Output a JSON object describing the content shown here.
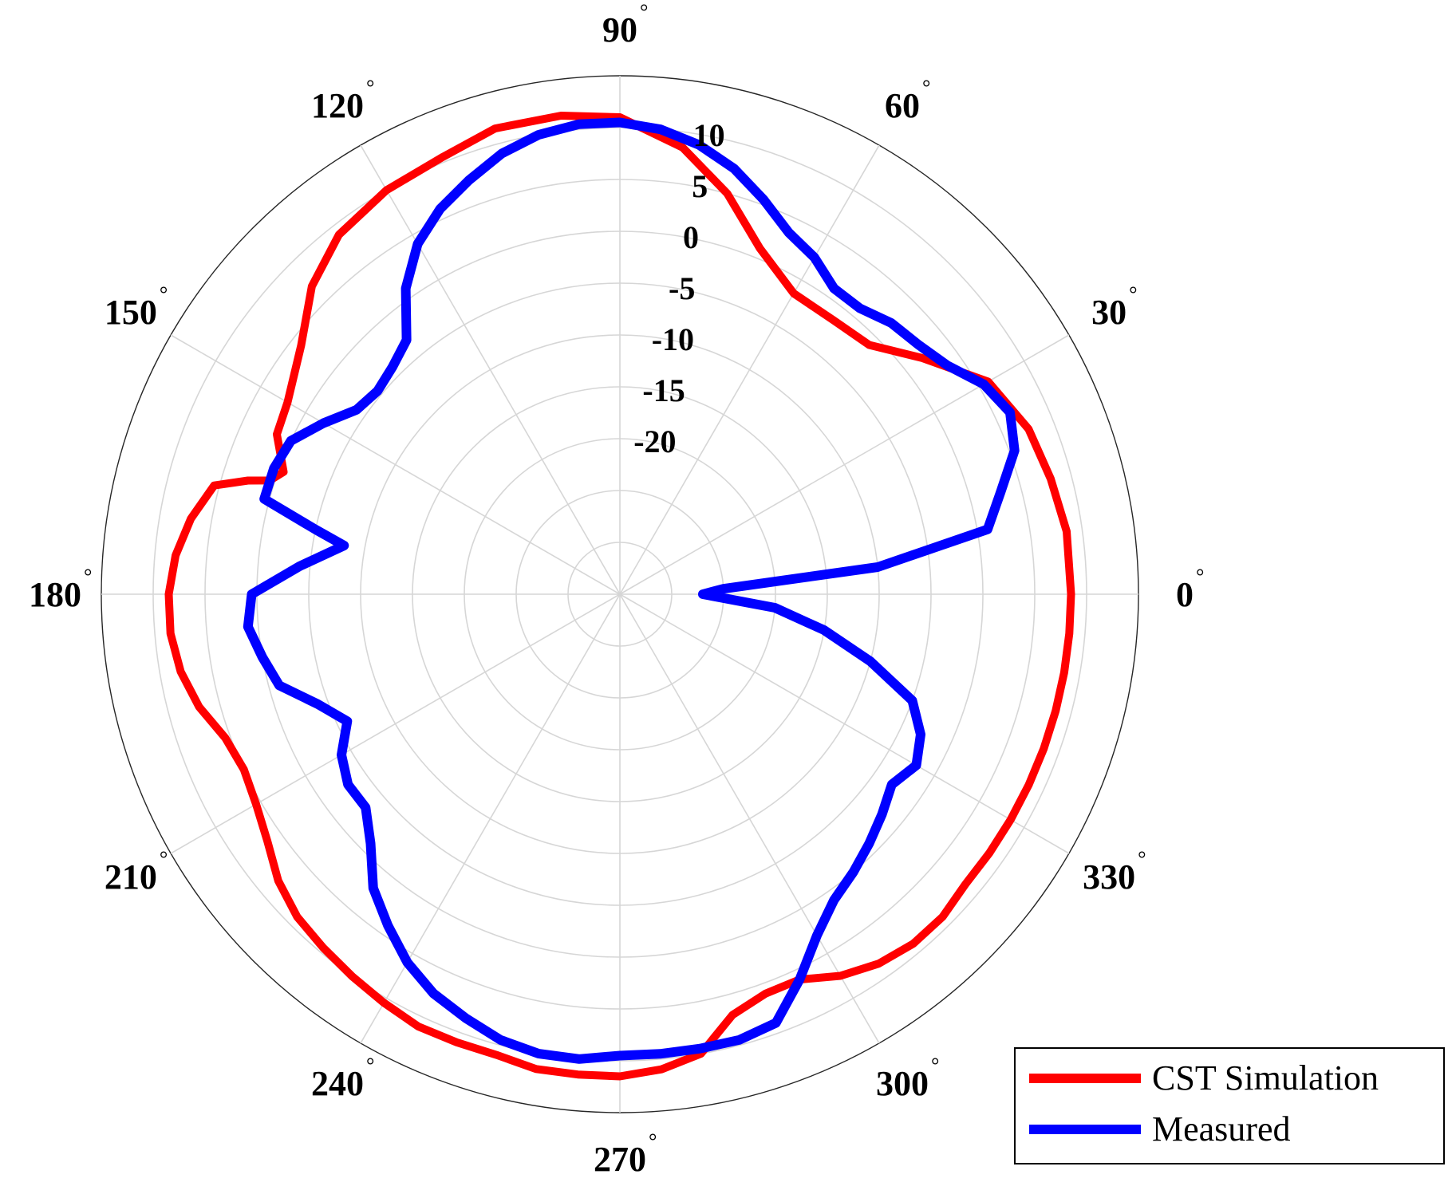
{
  "chart_data": {
    "type": "line",
    "polar": true,
    "title": "",
    "angular_ticks": [
      "0",
      "30",
      "60",
      "90",
      "120",
      "150",
      "180",
      "210",
      "240",
      "270",
      "300",
      "330"
    ],
    "angular_tick_unit": "°",
    "radial_ticks": [
      10,
      5,
      0,
      -5,
      -10,
      -15,
      -20
    ],
    "radial_range": [
      -35,
      15
    ],
    "grid": true,
    "legend": {
      "position": "bottom-right",
      "entries": [
        "CST Simulation",
        "Measured"
      ]
    },
    "series": [
      {
        "name": "CST Simulation",
        "color": "#ff0000",
        "theta": [
          0,
          8,
          15,
          22,
          30,
          38,
          45,
          52,
          60,
          68,
          75,
          82,
          90,
          97,
          105,
          112,
          120,
          128,
          135,
          142,
          150,
          155,
          160,
          162,
          163,
          165,
          170,
          175,
          180,
          185,
          190,
          195,
          200,
          205,
          210,
          215,
          220,
          225,
          230,
          235,
          240,
          245,
          250,
          255,
          260,
          265,
          270,
          275,
          280,
          285,
          290,
          295,
          300,
          305,
          310,
          315,
          320,
          325,
          330,
          335,
          340,
          345,
          350,
          355,
          360
        ],
        "r": [
          8.5,
          8.5,
          8,
          7.5,
          6,
          2,
          -1,
          -1.5,
          -1.5,
          1,
          5,
          8.5,
          11,
          11.5,
          11.5,
          10.5,
          10,
          9,
          7,
          4,
          2,
          1.5,
          -0.5,
          0.5,
          2.5,
          5.5,
          7,
          8,
          8.5,
          8.5,
          8,
          7,
          5.5,
          5,
          5.5,
          6.5,
          8,
          9,
          9.5,
          10,
          10.5,
          11,
          11,
          11,
          11.5,
          11.5,
          11.5,
          11,
          10,
          7,
          6,
          6,
          7.5,
          8.5,
          9,
          9,
          8.5,
          8.5,
          8.5,
          8.5,
          8.5,
          8.5,
          8.5,
          8.5,
          8.5
        ]
      },
      {
        "name": "Measured",
        "color": "#0000ff",
        "theta": [
          0,
          3,
          6,
          10,
          15,
          20,
          25,
          30,
          35,
          40,
          45,
          50,
          55,
          60,
          65,
          70,
          75,
          80,
          85,
          90,
          95,
          100,
          105,
          110,
          115,
          120,
          125,
          130,
          135,
          140,
          145,
          150,
          155,
          160,
          165,
          168,
          170,
          175,
          180,
          185,
          190,
          195,
          200,
          205,
          210,
          215,
          220,
          225,
          230,
          235,
          240,
          245,
          250,
          255,
          260,
          265,
          270,
          275,
          280,
          285,
          290,
          295,
          300,
          305,
          310,
          315,
          320,
          325,
          330,
          335,
          340,
          345,
          350,
          355,
          360
        ],
        "r": [
          -27,
          -25,
          -10,
          1,
          3,
          5.5,
          6.5,
          5.5,
          3.5,
          2.5,
          2,
          1,
          1,
          2.5,
          3.5,
          5.5,
          7.5,
          9,
          10,
          10.5,
          10.5,
          10,
          9,
          7.5,
          6,
          4,
          1,
          -3,
          -4,
          -4.5,
          -4,
          -2,
          0,
          0.5,
          0.5,
          -5,
          -8,
          -4,
          0.5,
          1,
          0,
          -1,
          -4,
          -6,
          -4,
          -3,
          -3,
          -1,
          2,
          4,
          6,
          7.5,
          8.5,
          9.5,
          10,
          10,
          9.5,
          9.5,
          9.5,
          9.5,
          9,
          6,
          3,
          1,
          0,
          -1,
          -2,
          -3,
          -2,
          -3,
          -5,
          -10,
          -15,
          -20,
          -27
        ]
      }
    ]
  },
  "legend": {
    "items": [
      {
        "label": "CST Simulation",
        "color": "#ff0000"
      },
      {
        "label": "Measured",
        "color": "#0000ff"
      }
    ]
  }
}
